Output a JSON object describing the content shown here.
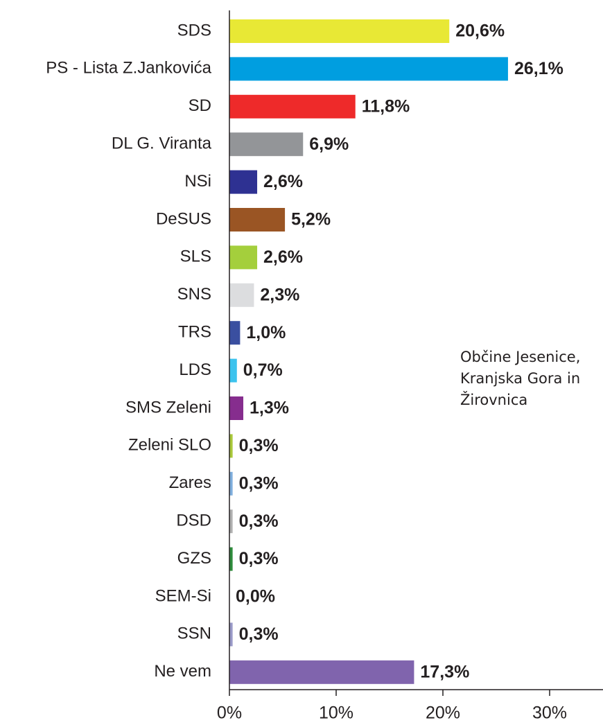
{
  "chart_data": {
    "type": "barh",
    "categories": [
      "SDS",
      "PS - Lista Z.Jankovića",
      "SD",
      "DL G. Viranta",
      "NSi",
      "DeSUS",
      "SLS",
      "SNS",
      "TRS",
      "LDS",
      "SMS Zeleni",
      "Zeleni SLO",
      "Zares",
      "DSD",
      "GZS",
      "SEM-Si",
      "SSN",
      "Ne vem"
    ],
    "values": [
      20.6,
      26.1,
      11.8,
      6.9,
      2.6,
      5.2,
      2.6,
      2.3,
      1.0,
      0.7,
      1.3,
      0.3,
      0.3,
      0.3,
      0.3,
      0.0,
      0.3,
      17.3
    ],
    "value_labels": [
      "20,6%",
      "26,1%",
      "11,8%",
      "6,9%",
      "2,6%",
      "5,2%",
      "2,6%",
      "2,3%",
      "1,0%",
      "0,7%",
      "1,3%",
      "0,3%",
      "0,3%",
      "0,3%",
      "0,3%",
      "0,0%",
      "0,3%",
      "17,3%"
    ],
    "colors": [
      "#e8e835",
      "#009ee0",
      "#ee2a2a",
      "#939598",
      "#2e3192",
      "#9a5524",
      "#a4cf3c",
      "#dcdddf",
      "#3a4fa0",
      "#3cc3ee",
      "#862d8e",
      "#a9c83a",
      "#7faedc",
      "#b0b0b0",
      "#2e8b3c",
      "#cccccc",
      "#9a9ac8",
      "#8064ad"
    ],
    "xlim": [
      0,
      35
    ],
    "xticks": [
      {
        "value": 0,
        "label": "0%"
      },
      {
        "value": 10,
        "label": "10%"
      },
      {
        "value": 20,
        "label": "20%"
      },
      {
        "value": 30,
        "label": "30%"
      }
    ],
    "annotation": [
      "Občine Jesenice,",
      "Kranjska Gora in",
      "Žirovnica"
    ]
  }
}
